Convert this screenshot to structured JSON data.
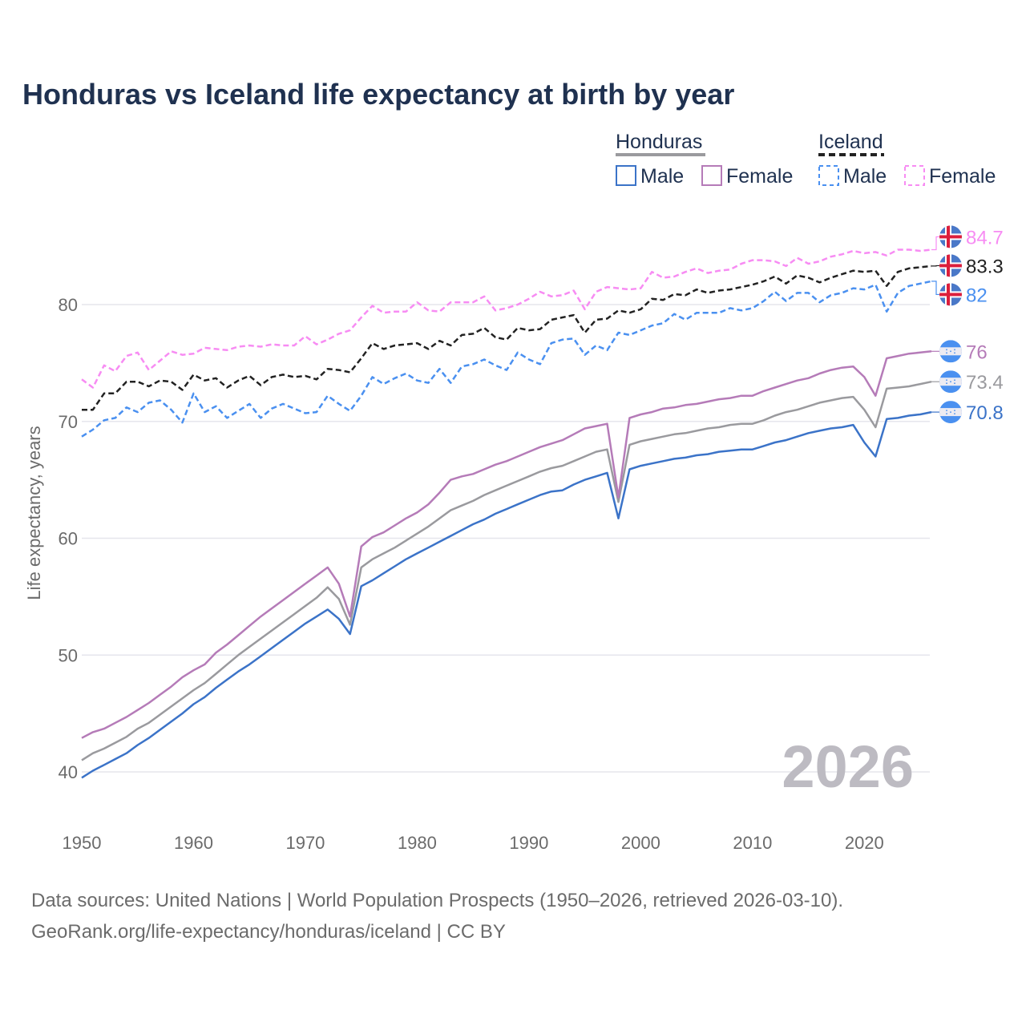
{
  "colors": {
    "hn_male": "#3b73c8",
    "hn_female": "#b57bb8",
    "hn_total": "#9a9a9e",
    "is_male": "#4a90f0",
    "is_female": "#f78cf3",
    "is_total": "#222222",
    "title": "#1f3150",
    "axis_text": "#6b6b6b",
    "grid": "#e6e6ec",
    "year_watermark": "#bdbbc2"
  },
  "chart_data": {
    "type": "line",
    "title": "Honduras vs Iceland life expectancy at birth by year",
    "xlabel": "",
    "ylabel": "Life expectancy, years",
    "xlim": [
      1950,
      2026
    ],
    "ylim": [
      40,
      80
    ],
    "yticks": [
      40,
      50,
      60,
      70,
      80
    ],
    "xticks": [
      1950,
      1960,
      1970,
      1980,
      1990,
      2000,
      2010,
      2020
    ],
    "grid": true,
    "year_watermark": "2026",
    "legend": {
      "placement": "top-right",
      "groups": [
        {
          "title": "Honduras",
          "items": [
            "Male",
            "Female"
          ]
        },
        {
          "title": "Iceland",
          "items": [
            "Male",
            "Female"
          ]
        }
      ]
    },
    "x_start": 1950,
    "series": [
      {
        "key": "is_female",
        "country": "Iceland",
        "name": "Female",
        "dashed": true,
        "end_label": "84.7",
        "values": [
          73.6,
          72.9,
          74.8,
          74.3,
          75.6,
          75.9,
          74.4,
          75.2,
          76.0,
          75.7,
          75.8,
          76.3,
          76.2,
          76.1,
          76.4,
          76.5,
          76.4,
          76.6,
          76.5,
          76.5,
          77.3,
          76.6,
          77.0,
          77.5,
          77.8,
          78.9,
          79.9,
          79.3,
          79.4,
          79.4,
          80.2,
          79.5,
          79.4,
          80.2,
          80.2,
          80.2,
          80.7,
          79.5,
          79.7,
          80.0,
          80.5,
          81.1,
          80.7,
          80.8,
          81.2,
          79.6,
          81.1,
          81.5,
          81.4,
          81.3,
          81.4,
          82.8,
          82.3,
          82.4,
          82.8,
          83.1,
          82.7,
          82.9,
          83.0,
          83.5,
          83.8,
          83.8,
          83.7,
          83.3,
          84.0,
          83.5,
          83.7,
          84.1,
          84.3,
          84.6,
          84.4,
          84.5,
          84.2,
          84.7,
          84.7,
          84.6,
          84.7
        ]
      },
      {
        "key": "is_total",
        "country": "Iceland",
        "name": "Total",
        "dashed": true,
        "end_label": "83.3",
        "values": [
          71.0,
          71.0,
          72.4,
          72.4,
          73.4,
          73.4,
          73.0,
          73.5,
          73.4,
          72.7,
          74.0,
          73.5,
          73.7,
          72.9,
          73.5,
          73.9,
          73.1,
          73.8,
          74.0,
          73.8,
          73.9,
          73.6,
          74.5,
          74.4,
          74.2,
          75.4,
          76.7,
          76.2,
          76.5,
          76.6,
          76.7,
          76.2,
          76.9,
          76.5,
          77.4,
          77.5,
          78.0,
          77.2,
          77.0,
          78.0,
          77.8,
          77.9,
          78.7,
          78.9,
          79.1,
          77.6,
          78.7,
          78.8,
          79.5,
          79.3,
          79.6,
          80.5,
          80.4,
          80.9,
          80.8,
          81.3,
          81.0,
          81.2,
          81.3,
          81.5,
          81.7,
          82.0,
          82.4,
          81.8,
          82.5,
          82.3,
          81.9,
          82.3,
          82.6,
          82.9,
          82.8,
          82.9,
          81.6,
          82.8,
          83.1,
          83.2,
          83.3
        ]
      },
      {
        "key": "is_male",
        "country": "Iceland",
        "name": "Male",
        "dashed": true,
        "end_label": "82",
        "values": [
          68.7,
          69.3,
          70.1,
          70.3,
          71.2,
          70.8,
          71.6,
          71.8,
          71.0,
          69.9,
          72.4,
          70.8,
          71.3,
          70.3,
          70.9,
          71.5,
          70.3,
          71.1,
          71.5,
          71.1,
          70.7,
          70.8,
          72.2,
          71.5,
          70.9,
          72.2,
          73.8,
          73.2,
          73.7,
          74.1,
          73.5,
          73.3,
          74.5,
          73.3,
          74.7,
          74.9,
          75.3,
          74.8,
          74.4,
          75.9,
          75.3,
          74.9,
          76.7,
          77.0,
          77.1,
          75.7,
          76.5,
          76.1,
          77.6,
          77.4,
          77.8,
          78.2,
          78.4,
          79.2,
          78.7,
          79.3,
          79.3,
          79.3,
          79.7,
          79.5,
          79.7,
          80.3,
          81.1,
          80.3,
          81.0,
          81.0,
          80.2,
          80.8,
          81.0,
          81.4,
          81.3,
          81.7,
          79.4,
          81.0,
          81.6,
          81.8,
          82.0
        ]
      },
      {
        "key": "hn_female",
        "country": "Honduras",
        "name": "Female",
        "dashed": false,
        "end_label": "76",
        "values": [
          42.9,
          43.4,
          43.7,
          44.2,
          44.7,
          45.3,
          45.9,
          46.6,
          47.3,
          48.1,
          48.7,
          49.2,
          50.2,
          50.9,
          51.7,
          52.5,
          53.3,
          54.0,
          54.7,
          55.4,
          56.1,
          56.8,
          57.5,
          56.1,
          53.3,
          59.3,
          60.1,
          60.5,
          61.1,
          61.7,
          62.2,
          62.9,
          63.9,
          65.0,
          65.3,
          65.5,
          65.9,
          66.3,
          66.6,
          67.0,
          67.4,
          67.8,
          68.1,
          68.4,
          68.9,
          69.4,
          69.6,
          69.8,
          63.5,
          70.3,
          70.6,
          70.8,
          71.1,
          71.2,
          71.4,
          71.5,
          71.7,
          71.9,
          72.0,
          72.2,
          72.2,
          72.6,
          72.9,
          73.2,
          73.5,
          73.7,
          74.1,
          74.4,
          74.6,
          74.7,
          73.8,
          72.2,
          75.4,
          75.6,
          75.8,
          75.9,
          76.0
        ]
      },
      {
        "key": "hn_total",
        "country": "Honduras",
        "name": "Total",
        "dashed": false,
        "end_label": "73.4",
        "values": [
          41.0,
          41.6,
          42.0,
          42.5,
          43.0,
          43.7,
          44.2,
          44.9,
          45.6,
          46.3,
          47.0,
          47.6,
          48.4,
          49.2,
          50.0,
          50.7,
          51.4,
          52.1,
          52.8,
          53.5,
          54.2,
          54.9,
          55.8,
          54.8,
          52.6,
          57.5,
          58.2,
          58.7,
          59.2,
          59.8,
          60.4,
          61.0,
          61.7,
          62.4,
          62.8,
          63.2,
          63.7,
          64.1,
          64.5,
          64.9,
          65.3,
          65.7,
          66.0,
          66.2,
          66.6,
          67.0,
          67.4,
          67.6,
          63.1,
          68.0,
          68.3,
          68.5,
          68.7,
          68.9,
          69.0,
          69.2,
          69.4,
          69.5,
          69.7,
          69.8,
          69.8,
          70.1,
          70.5,
          70.8,
          71.0,
          71.3,
          71.6,
          71.8,
          72.0,
          72.1,
          71.0,
          69.5,
          72.8,
          72.9,
          73.0,
          73.2,
          73.4
        ]
      },
      {
        "key": "hn_male",
        "country": "Honduras",
        "name": "Male",
        "dashed": false,
        "end_label": "70.8",
        "values": [
          39.5,
          40.1,
          40.6,
          41.1,
          41.6,
          42.3,
          42.9,
          43.6,
          44.3,
          45.0,
          45.8,
          46.4,
          47.2,
          47.9,
          48.6,
          49.2,
          49.9,
          50.6,
          51.3,
          52.0,
          52.7,
          53.3,
          53.9,
          53.1,
          51.8,
          55.9,
          56.4,
          57.0,
          57.6,
          58.2,
          58.7,
          59.2,
          59.7,
          60.2,
          60.7,
          61.2,
          61.6,
          62.1,
          62.5,
          62.9,
          63.3,
          63.7,
          64.0,
          64.1,
          64.6,
          65.0,
          65.3,
          65.6,
          61.7,
          65.9,
          66.2,
          66.4,
          66.6,
          66.8,
          66.9,
          67.1,
          67.2,
          67.4,
          67.5,
          67.6,
          67.6,
          67.9,
          68.2,
          68.4,
          68.7,
          69.0,
          69.2,
          69.4,
          69.5,
          69.7,
          68.2,
          67.0,
          70.2,
          70.3,
          70.5,
          70.6,
          70.8
        ]
      }
    ]
  },
  "footer": {
    "line1": "Data sources: United Nations | World Population Prospects (1950–2026, retrieved 2026-03-10).",
    "line2": "GeoRank.org/life-expectancy/honduras/iceland | CC BY"
  }
}
